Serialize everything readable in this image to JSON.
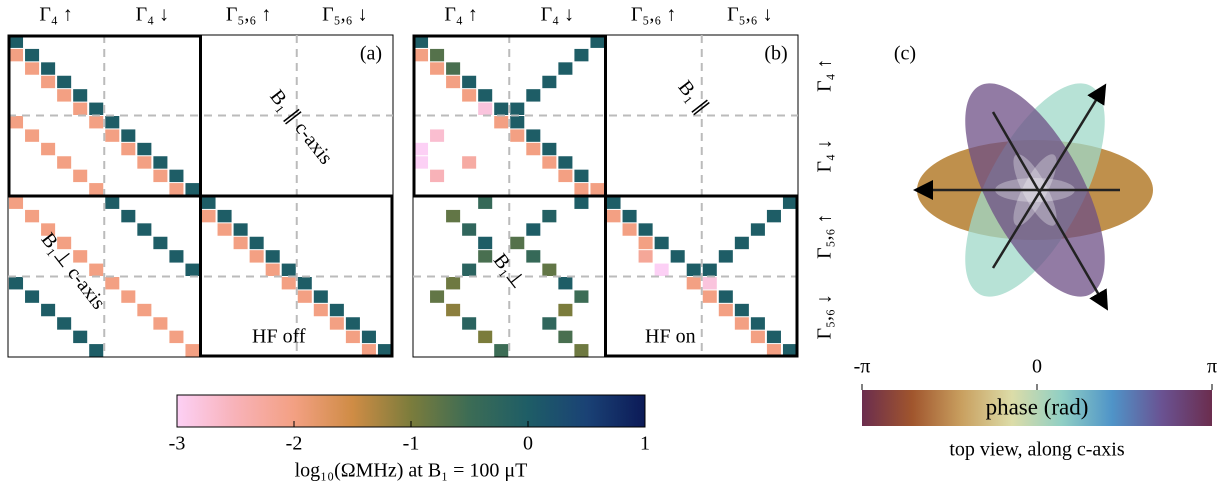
{
  "row_labels": [
    "Γ₄ ↑",
    "Γ₄ ↓",
    "Γ₅,₆ ↑",
    "Γ₅,₆ ↓"
  ],
  "column_labels": [
    "Γ₄ ↑",
    "Γ₄ ↓",
    "Γ₅,₆ ↑",
    "Γ₅,₆ ↓"
  ],
  "chart_data": [
    {
      "type": "matrix",
      "panel_label": "(a)",
      "annotations": [
        "B₁ ∥ c-axis",
        "B₁⊥ c-axis",
        "HF off"
      ],
      "cells": [
        [
          0,
          0,
          0
        ],
        [
          1,
          1,
          0
        ],
        [
          2,
          2,
          0
        ],
        [
          3,
          3,
          0
        ],
        [
          4,
          4,
          0
        ],
        [
          5,
          5,
          0
        ],
        [
          6,
          6,
          0
        ],
        [
          7,
          7,
          0
        ],
        [
          8,
          8,
          0
        ],
        [
          9,
          9,
          0
        ],
        [
          10,
          10,
          0
        ],
        [
          11,
          11,
          0
        ],
        [
          1,
          0,
          -2
        ],
        [
          2,
          1,
          -2
        ],
        [
          3,
          2,
          -2
        ],
        [
          4,
          3,
          -2
        ],
        [
          5,
          4,
          -2
        ],
        [
          6,
          5,
          -2
        ],
        [
          7,
          6,
          -2
        ],
        [
          8,
          7,
          -2
        ],
        [
          9,
          8,
          -2
        ],
        [
          10,
          9,
          -2
        ],
        [
          11,
          10,
          -2
        ],
        [
          6,
          0,
          -2
        ],
        [
          7,
          1,
          -2
        ],
        [
          8,
          2,
          -2
        ],
        [
          9,
          3,
          -2
        ],
        [
          10,
          4,
          -2
        ],
        [
          11,
          5,
          -2
        ],
        [
          12,
          12,
          0
        ],
        [
          13,
          13,
          0
        ],
        [
          14,
          14,
          0
        ],
        [
          15,
          15,
          0
        ],
        [
          16,
          16,
          0
        ],
        [
          17,
          17,
          0
        ],
        [
          18,
          18,
          0
        ],
        [
          19,
          19,
          0
        ],
        [
          20,
          20,
          0
        ],
        [
          21,
          21,
          0
        ],
        [
          22,
          22,
          0
        ],
        [
          23,
          23,
          0
        ],
        [
          13,
          12,
          -2
        ],
        [
          14,
          13,
          -2
        ],
        [
          15,
          14,
          -2
        ],
        [
          16,
          15,
          -2
        ],
        [
          17,
          16,
          -2
        ],
        [
          18,
          17,
          -2
        ],
        [
          19,
          18,
          -2
        ],
        [
          20,
          19,
          -2
        ],
        [
          21,
          20,
          -2
        ],
        [
          22,
          21,
          -2
        ],
        [
          23,
          22,
          -2
        ],
        [
          12,
          0,
          -2
        ],
        [
          13,
          1,
          -2
        ],
        [
          14,
          2,
          -2
        ],
        [
          15,
          3,
          -2
        ],
        [
          16,
          4,
          -2
        ],
        [
          17,
          5,
          -2
        ],
        [
          12,
          6,
          0
        ],
        [
          13,
          7,
          0
        ],
        [
          14,
          8,
          0
        ],
        [
          15,
          9,
          0
        ],
        [
          16,
          10,
          0
        ],
        [
          17,
          11,
          0
        ],
        [
          18,
          0,
          0
        ],
        [
          19,
          1,
          0
        ],
        [
          20,
          2,
          0
        ],
        [
          21,
          3,
          0
        ],
        [
          22,
          4,
          0
        ],
        [
          23,
          5,
          0
        ],
        [
          18,
          6,
          -2
        ],
        [
          19,
          7,
          -2
        ],
        [
          20,
          8,
          -2
        ],
        [
          21,
          9,
          -2
        ],
        [
          22,
          10,
          -2
        ],
        [
          23,
          11,
          -2
        ]
      ]
    },
    {
      "type": "matrix",
      "panel_label": "(b)",
      "annotations": [
        "B₁ ∥",
        "B₁⊥",
        "HF on"
      ],
      "cells": [
        [
          0,
          0,
          0
        ],
        [
          1,
          1,
          -0.7
        ],
        [
          2,
          2,
          -0.6
        ],
        [
          3,
          3,
          0
        ],
        [
          4,
          4,
          0
        ],
        [
          5,
          5,
          0
        ],
        [
          6,
          6,
          0
        ],
        [
          7,
          7,
          0
        ],
        [
          8,
          8,
          0
        ],
        [
          9,
          9,
          0
        ],
        [
          10,
          10,
          0
        ],
        [
          11,
          11,
          -2
        ],
        [
          1,
          0,
          -2
        ],
        [
          2,
          1,
          -2
        ],
        [
          3,
          2,
          -2
        ],
        [
          4,
          3,
          -2
        ],
        [
          5,
          4,
          -2.8
        ],
        [
          6,
          5,
          -2
        ],
        [
          7,
          6,
          -2
        ],
        [
          8,
          7,
          -2
        ],
        [
          9,
          8,
          -2
        ],
        [
          10,
          9,
          -2
        ],
        [
          11,
          10,
          -2
        ],
        [
          0,
          11,
          0
        ],
        [
          1,
          10,
          0
        ],
        [
          2,
          9,
          0
        ],
        [
          3,
          8,
          0
        ],
        [
          4,
          7,
          0
        ],
        [
          5,
          6,
          0
        ],
        [
          7,
          1,
          -2.7
        ],
        [
          8,
          0,
          -3
        ],
        [
          9,
          0,
          -3
        ],
        [
          10,
          1,
          -2.5
        ],
        [
          9,
          3,
          -2.3
        ],
        [
          12,
          12,
          0
        ],
        [
          13,
          13,
          0
        ],
        [
          14,
          14,
          0
        ],
        [
          15,
          15,
          0
        ],
        [
          16,
          16,
          0
        ],
        [
          17,
          17,
          0
        ],
        [
          18,
          18,
          -2.8
        ],
        [
          19,
          19,
          0
        ],
        [
          20,
          20,
          0
        ],
        [
          21,
          21,
          0
        ],
        [
          22,
          22,
          0
        ],
        [
          23,
          23,
          0
        ],
        [
          13,
          12,
          -2
        ],
        [
          14,
          13,
          -2
        ],
        [
          15,
          14,
          -2
        ],
        [
          16,
          14,
          -2.2
        ],
        [
          17,
          15,
          -3
        ],
        [
          18,
          17,
          -2
        ],
        [
          19,
          18,
          -2
        ],
        [
          20,
          19,
          -2
        ],
        [
          21,
          20,
          -2
        ],
        [
          22,
          21,
          -2
        ],
        [
          23,
          22,
          -2
        ],
        [
          12,
          23,
          0
        ],
        [
          13,
          22,
          0
        ],
        [
          14,
          21,
          0
        ],
        [
          15,
          20,
          0
        ],
        [
          16,
          19,
          0
        ],
        [
          17,
          18,
          0
        ],
        [
          13,
          2,
          -0.8
        ],
        [
          14,
          3,
          -0.3
        ],
        [
          15,
          4,
          0
        ],
        [
          16,
          4,
          -0.6
        ],
        [
          17,
          3,
          -0.2
        ],
        [
          18,
          2,
          -0.9
        ],
        [
          13,
          8,
          -0.1
        ],
        [
          14,
          7,
          0
        ],
        [
          15,
          6,
          -0.7
        ],
        [
          16,
          7,
          -0.4
        ],
        [
          17,
          8,
          -0.8
        ],
        [
          18,
          9,
          0
        ],
        [
          19,
          10,
          -0.5
        ],
        [
          20,
          9,
          -1
        ],
        [
          21,
          8,
          -0.3
        ],
        [
          22,
          9,
          -0.6
        ],
        [
          23,
          10,
          -0.9
        ],
        [
          12,
          4,
          -0.4
        ],
        [
          19,
          1,
          -0.8
        ],
        [
          20,
          2,
          -1.1
        ],
        [
          21,
          3,
          -0.2
        ],
        [
          22,
          4,
          -1
        ],
        [
          23,
          5,
          -0.5
        ],
        [
          12,
          10,
          0
        ]
      ]
    },
    {
      "type": "colorbar",
      "label": "log₁₀(ΩMHz) at B₁ = 100 μT",
      "clim": [
        -3,
        1
      ],
      "ticks": [
        -3,
        -2,
        -1,
        0,
        1
      ],
      "colors": [
        "#fcd0f5",
        "#f8b2b8",
        "#f3a083",
        "#cf8c45",
        "#7b7c3c",
        "#3c6c55",
        "#1e5d66",
        "#1a4275",
        "#0c1a57"
      ]
    },
    {
      "type": "polar",
      "panel_label": "(c)",
      "colorbar_label": "phase (rad)",
      "caption": "top view, along c-axis",
      "lim": [
        -3.14159,
        3.14159
      ],
      "ticks": [
        {
          "value": -3.14159,
          "label": "-π"
        },
        0,
        {
          "value": 3.14159,
          "label": "π"
        }
      ],
      "colors": [
        "#6b2d4e",
        "#a0552d",
        "#c9a060",
        "#dcdca8",
        "#90cfc4",
        "#4f94c8",
        "#6a5292",
        "#6b2d4e"
      ]
    }
  ]
}
